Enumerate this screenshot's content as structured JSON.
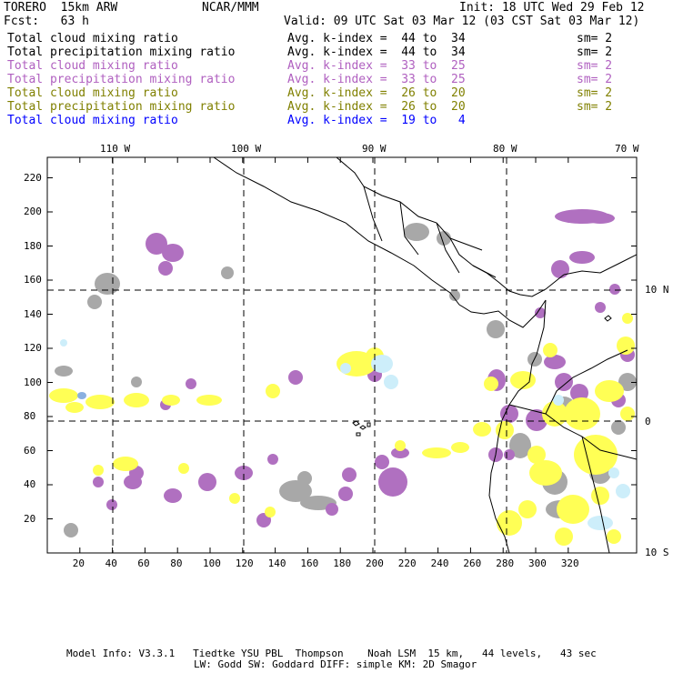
{
  "header": {
    "model": "TORERO  15km ARW",
    "org": "NCAR/MMM",
    "init": "Init: 18 UTC Wed 29 Feb 12",
    "fcst": "Fcst:   63 h",
    "valid": "Valid: 09 UTC Sat 03 Mar 12 (03 CST Sat 03 Mar 12)"
  },
  "legend": [
    {
      "name": "Total cloud mixing ratio",
      "avg": "Avg. k-index =  44 to  34",
      "sm": "sm= 2",
      "color": "#000000"
    },
    {
      "name": "Total precipitation mixing ratio",
      "avg": "Avg. k-index =  44 to  34",
      "sm": "sm= 2",
      "color": "#000000"
    },
    {
      "name": "Total cloud mixing ratio",
      "avg": "Avg. k-index =  33 to  25",
      "sm": "sm= 2",
      "color": "#b060c0"
    },
    {
      "name": "Total precipitation mixing ratio",
      "avg": "Avg. k-index =  33 to  25",
      "sm": "sm= 2",
      "color": "#b060c0"
    },
    {
      "name": "Total cloud mixing ratio",
      "avg": "Avg. k-index =  26 to  20",
      "sm": "sm= 2",
      "color": "#808000"
    },
    {
      "name": "Total precipitation mixing ratio",
      "avg": "Avg. k-index =  26 to  20",
      "sm": "sm= 2",
      "color": "#808000"
    },
    {
      "name": "Total cloud mixing ratio",
      "avg": "Avg. k-index =  19 to   4",
      "sm": "",
      "color": "#0000ff"
    }
  ],
  "lon_labels": [
    "110 W",
    "100 W",
    "90 W",
    "80 W",
    "70 W"
  ],
  "lat_labels": [
    "10 N",
    "0",
    "10 S"
  ],
  "x_ticks": [
    "20",
    "40",
    "60",
    "80",
    "100",
    "120",
    "140",
    "160",
    "180",
    "200",
    "220",
    "240",
    "260",
    "280",
    "300",
    "320"
  ],
  "y_ticks": [
    "220",
    "200",
    "180",
    "160",
    "140",
    "120",
    "100",
    "80",
    "60",
    "40",
    "20"
  ],
  "footer": {
    "line1": "Model Info: V3.3.1   Tiedtke YSU PBL  Thompson    Noah LSM  15 km,   44 levels,   43 sec",
    "line2": "LW: Godd SW: Goddard DIFF: simple KM: 2D Smagor"
  },
  "colors": {
    "gray": "#a8a8a8",
    "purple": "#b070c0",
    "yellow": "#ffff55",
    "lightblue": "#cdeefa",
    "blue": "#8ab0e0",
    "land": "#000000"
  }
}
